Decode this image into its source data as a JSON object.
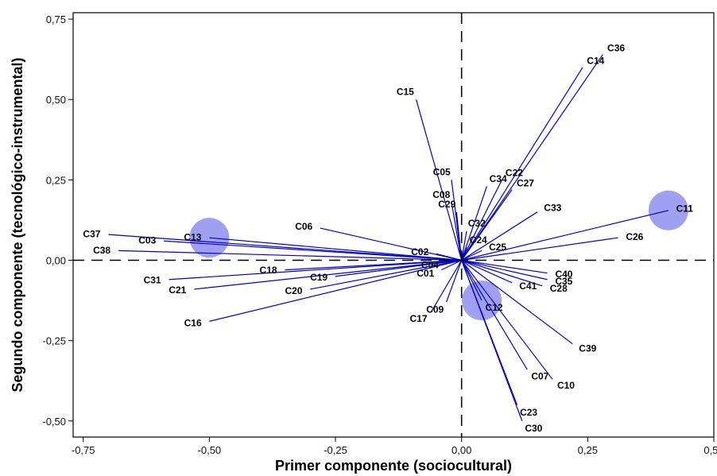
{
  "chart_data": {
    "type": "scatter",
    "style": "biplot-vectors-from-origin",
    "xlabel": "Primer componente (sociocultural)",
    "ylabel": "Segundo componente (tecnológico-instrumental)",
    "xlim": [
      -0.77,
      0.5
    ],
    "ylim": [
      -0.55,
      0.77
    ],
    "xticks": [
      "-0,75",
      "-0,50",
      "-0,25",
      "0,00",
      "0,25",
      "0,50"
    ],
    "xtick_values": [
      -0.75,
      -0.5,
      -0.25,
      0,
      0.25,
      0.5
    ],
    "yticks": [
      "0,75",
      "0,50",
      "0,25",
      "0,00",
      "-0,25",
      "-0,50"
    ],
    "ytick_values": [
      0.75,
      0.5,
      0.25,
      0,
      -0.25,
      -0.5
    ],
    "grid": false,
    "reference_lines": "dashed lines at x=0 and y=0",
    "line_color": "#0000cc",
    "highlight_color": "#8f8ff0",
    "highlighted": [
      "C11",
      "C12",
      "C13"
    ],
    "points": [
      {
        "label": "C01",
        "x": -0.04,
        "y": -0.03
      },
      {
        "label": "C02",
        "x": -0.05,
        "y": 0.02
      },
      {
        "label": "C03",
        "x": -0.59,
        "y": 0.06
      },
      {
        "label": "C04",
        "x": -0.03,
        "y": -0.01
      },
      {
        "label": "C05",
        "x": -0.02,
        "y": 0.25
      },
      {
        "label": "C06",
        "x": -0.28,
        "y": 0.1
      },
      {
        "label": "C07",
        "x": 0.13,
        "y": -0.34
      },
      {
        "label": "C08",
        "x": -0.02,
        "y": 0.18
      },
      {
        "label": "C09",
        "x": -0.03,
        "y": -0.13
      },
      {
        "label": "C10",
        "x": 0.18,
        "y": -0.37
      },
      {
        "label": "C11",
        "x": 0.41,
        "y": 0.155
      },
      {
        "label": "C12",
        "x": 0.04,
        "y": -0.125
      },
      {
        "label": "C13",
        "x": -0.5,
        "y": 0.07
      },
      {
        "label": "C14",
        "x": 0.24,
        "y": 0.6
      },
      {
        "label": "C15",
        "x": -0.09,
        "y": 0.5
      },
      {
        "label": "C16",
        "x": -0.5,
        "y": -0.19
      },
      {
        "label": "C17",
        "x": -0.06,
        "y": -0.16
      },
      {
        "label": "C18",
        "x": -0.35,
        "y": -0.03
      },
      {
        "label": "C19",
        "x": -0.25,
        "y": -0.05
      },
      {
        "label": "C20",
        "x": -0.3,
        "y": -0.09
      },
      {
        "label": "C21",
        "x": -0.53,
        "y": -0.09
      },
      {
        "label": "C22",
        "x": 0.08,
        "y": 0.25
      },
      {
        "label": "C23",
        "x": 0.11,
        "y": -0.45
      },
      {
        "label": "C24",
        "x": 0.01,
        "y": 0.04
      },
      {
        "label": "C25",
        "x": 0.04,
        "y": 0.03
      },
      {
        "label": "C26",
        "x": 0.31,
        "y": 0.07
      },
      {
        "label": "C27",
        "x": 0.1,
        "y": 0.22
      },
      {
        "label": "C28",
        "x": 0.16,
        "y": -0.08
      },
      {
        "label": "C29",
        "x": -0.01,
        "y": 0.15
      },
      {
        "label": "C30",
        "x": 0.12,
        "y": -0.5
      },
      {
        "label": "C31",
        "x": -0.58,
        "y": -0.06
      },
      {
        "label": "C32",
        "x": 0.01,
        "y": 0.09
      },
      {
        "label": "C33",
        "x": 0.15,
        "y": 0.15
      },
      {
        "label": "C34",
        "x": 0.05,
        "y": 0.23
      },
      {
        "label": "C35",
        "x": 0.17,
        "y": -0.06
      },
      {
        "label": "C36",
        "x": 0.28,
        "y": 0.64
      },
      {
        "label": "C37",
        "x": -0.7,
        "y": 0.08
      },
      {
        "label": "C38",
        "x": -0.68,
        "y": 0.03
      },
      {
        "label": "C39",
        "x": 0.22,
        "y": -0.26
      },
      {
        "label": "C40",
        "x": 0.17,
        "y": -0.04
      },
      {
        "label": "C41",
        "x": 0.1,
        "y": -0.07
      }
    ]
  }
}
